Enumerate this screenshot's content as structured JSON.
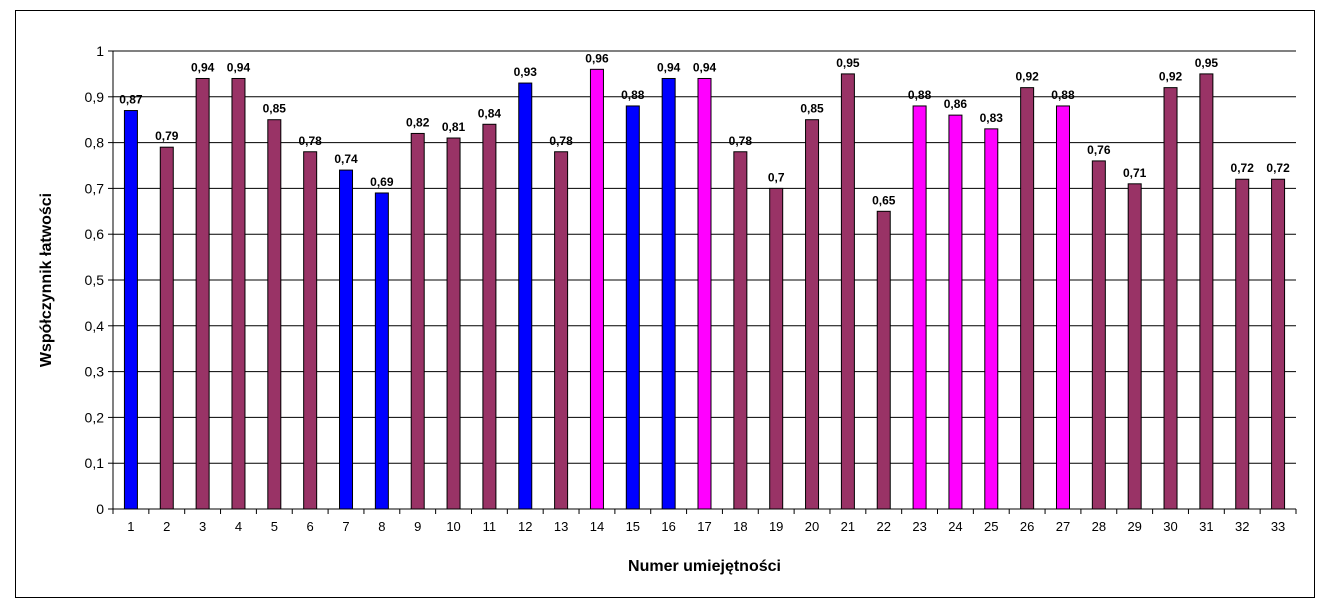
{
  "chart_data": {
    "type": "bar",
    "title": "",
    "xlabel": "Numer umiejętności",
    "ylabel": "Współczynnik łatwości",
    "ylim": [
      0,
      1
    ],
    "yticks": [
      "0",
      "0,1",
      "0,2",
      "0,3",
      "0,4",
      "0,5",
      "0,6",
      "0,7",
      "0,8",
      "0,9",
      "1"
    ],
    "grid": true,
    "legend": "none",
    "categories": [
      "1",
      "2",
      "3",
      "4",
      "5",
      "6",
      "7",
      "8",
      "9",
      "10",
      "11",
      "12",
      "13",
      "14",
      "15",
      "16",
      "17",
      "18",
      "19",
      "20",
      "21",
      "22",
      "23",
      "24",
      "25",
      "26",
      "27",
      "28",
      "29",
      "30",
      "31",
      "32",
      "33"
    ],
    "values": [
      0.87,
      0.79,
      0.94,
      0.94,
      0.85,
      0.78,
      0.74,
      0.69,
      0.82,
      0.81,
      0.84,
      0.93,
      0.78,
      0.96,
      0.88,
      0.94,
      0.94,
      0.78,
      0.7,
      0.85,
      0.95,
      0.65,
      0.88,
      0.86,
      0.83,
      0.92,
      0.88,
      0.76,
      0.71,
      0.92,
      0.95,
      0.72,
      0.72
    ],
    "value_labels": [
      "0,87",
      "0,79",
      "0,94",
      "0,94",
      "0,85",
      "0,78",
      "0,74",
      "0,69",
      "0,82",
      "0,81",
      "0,84",
      "0,93",
      "0,78",
      "0,96",
      "0,88",
      "0,94",
      "0,94",
      "0,78",
      "0,7",
      "0,85",
      "0,95",
      "0,65",
      "0,88",
      "0,86",
      "0,83",
      "0,92",
      "0,88",
      "0,76",
      "0,71",
      "0,92",
      "0,95",
      "0,72",
      "0,72"
    ],
    "bar_colors": [
      "blue",
      "maroon",
      "maroon",
      "maroon",
      "maroon",
      "maroon",
      "blue",
      "blue",
      "maroon",
      "maroon",
      "maroon",
      "blue",
      "maroon",
      "magenta",
      "blue",
      "blue",
      "magenta",
      "maroon",
      "maroon",
      "maroon",
      "maroon",
      "maroon",
      "magenta",
      "magenta",
      "magenta",
      "maroon",
      "magenta",
      "maroon",
      "maroon",
      "maroon",
      "maroon",
      "maroon",
      "maroon"
    ]
  },
  "colors": {
    "blue": "#0000FF",
    "maroon": "#993366",
    "magenta": "#FF00FF",
    "axis": "#000000",
    "grid": "#000000"
  }
}
